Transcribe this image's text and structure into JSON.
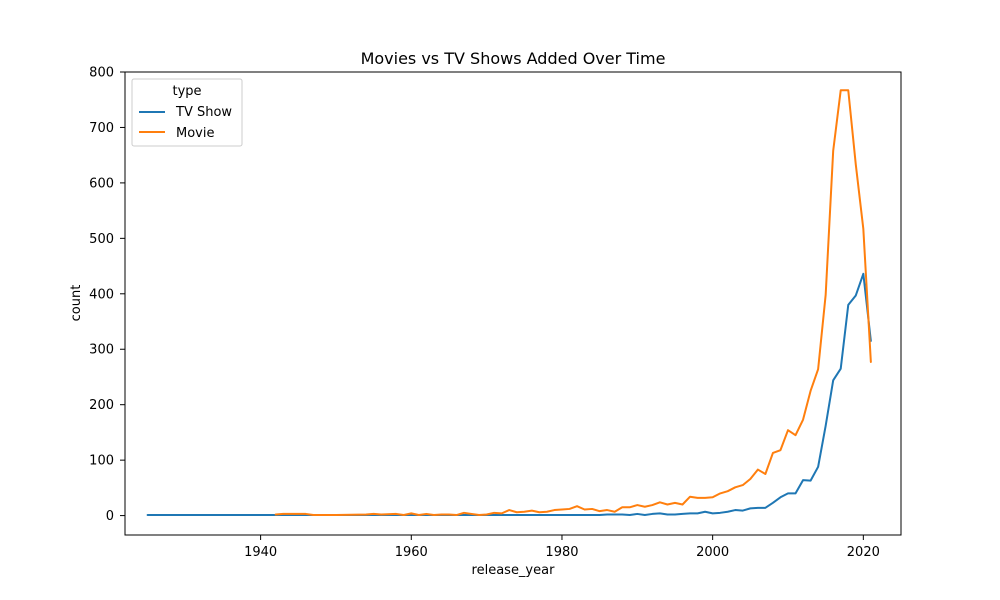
{
  "chart_data": {
    "type": "line",
    "title": "Movies vs TV Shows Added Over Time",
    "xlabel": "release_year",
    "ylabel": "count",
    "xlim": [
      1922,
      2025
    ],
    "ylim": [
      -35,
      800
    ],
    "xticks": [
      1940,
      1960,
      1980,
      2000,
      2020
    ],
    "yticks": [
      0,
      100,
      200,
      300,
      400,
      500,
      600,
      700,
      800
    ],
    "xtick_labels": [
      "1940",
      "1960",
      "1980",
      "2000",
      "2020"
    ],
    "ytick_labels": [
      "0",
      "100",
      "200",
      "300",
      "400",
      "500",
      "600",
      "700",
      "800"
    ],
    "grid": false,
    "legend": {
      "title": "type",
      "placement": "top-left"
    },
    "series": [
      {
        "name": "TV Show",
        "color": "#1f77b4",
        "x": [
          1925,
          1930,
          1935,
          1940,
          1945,
          1946,
          1963,
          1967,
          1972,
          1974,
          1976,
          1977,
          1979,
          1981,
          1985,
          1986,
          1988,
          1989,
          1990,
          1991,
          1992,
          1993,
          1994,
          1995,
          1996,
          1997,
          1998,
          1999,
          2000,
          2001,
          2002,
          2003,
          2004,
          2005,
          2006,
          2007,
          2008,
          2009,
          2010,
          2011,
          2012,
          2013,
          2014,
          2015,
          2016,
          2017,
          2018,
          2019,
          2020,
          2021
        ],
        "y": [
          1,
          1,
          1,
          1,
          1,
          1,
          1,
          1,
          1,
          1,
          1,
          1,
          1,
          1,
          1,
          2,
          2,
          1,
          3,
          1,
          3,
          4,
          2,
          2,
          3,
          4,
          4,
          7,
          4,
          5,
          7,
          10,
          9,
          13,
          14,
          14,
          23,
          33,
          40,
          40,
          64,
          63,
          88,
          162,
          244,
          265,
          380,
          397,
          436,
          315
        ]
      },
      {
        "name": "Movie",
        "color": "#ff7f0e",
        "x": [
          1942,
          1943,
          1944,
          1945,
          1946,
          1947,
          1950,
          1954,
          1955,
          1956,
          1958,
          1959,
          1960,
          1961,
          1962,
          1963,
          1964,
          1965,
          1966,
          1967,
          1968,
          1969,
          1970,
          1971,
          1972,
          1973,
          1974,
          1975,
          1976,
          1977,
          1978,
          1979,
          1980,
          1981,
          1982,
          1983,
          1984,
          1985,
          1986,
          1987,
          1988,
          1989,
          1990,
          1991,
          1992,
          1993,
          1994,
          1995,
          1996,
          1997,
          1998,
          1999,
          2000,
          2001,
          2002,
          2003,
          2004,
          2005,
          2006,
          2007,
          2008,
          2009,
          2010,
          2011,
          2012,
          2013,
          2014,
          2015,
          2016,
          2017,
          2018,
          2019,
          2020,
          2021
        ],
        "y": [
          2,
          3,
          3,
          3,
          3,
          1,
          1,
          2,
          3,
          2,
          3,
          1,
          4,
          1,
          3,
          1,
          2,
          2,
          1,
          5,
          3,
          1,
          2,
          5,
          4,
          10,
          6,
          7,
          9,
          6,
          7,
          10,
          11,
          12,
          17,
          11,
          12,
          8,
          10,
          7,
          15,
          15,
          19,
          16,
          19,
          24,
          20,
          23,
          20,
          34,
          32,
          32,
          33,
          40,
          44,
          51,
          55,
          66,
          83,
          75,
          113,
          118,
          154,
          145,
          173,
          225,
          264,
          398,
          658,
          767,
          767,
          633,
          517,
          277
        ]
      }
    ]
  }
}
